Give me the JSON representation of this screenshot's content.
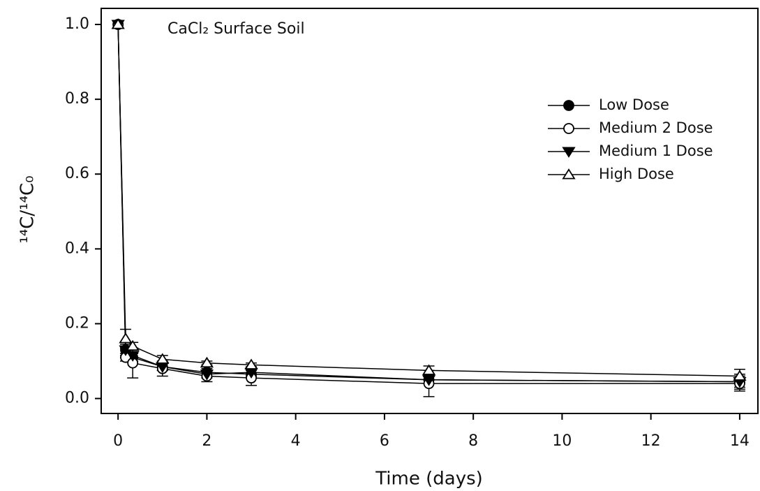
{
  "chart_data": {
    "type": "line",
    "title": "CaCl₂ Surface Soil",
    "x_label": "Time (days)",
    "y_label": "¹⁴C/¹⁴C₀",
    "x": [
      0,
      0.17,
      0.33,
      1,
      2,
      3,
      7,
      14
    ],
    "series": [
      {
        "name": "Low Dose",
        "color": "#000000",
        "marker": "circle-filled",
        "values": [
          1.0,
          0.13,
          0.11,
          0.085,
          0.07,
          0.065,
          0.05,
          0.045
        ],
        "errors": [
          0,
          0.015,
          0.01,
          0.01,
          0.01,
          0.01,
          0.01,
          0.02
        ]
      },
      {
        "name": "Medium 2 Dose",
        "color": "#000000",
        "marker": "circle-open",
        "values": [
          1.0,
          0.11,
          0.095,
          0.08,
          0.06,
          0.055,
          0.04,
          0.04
        ],
        "errors": [
          0,
          0.01,
          0.04,
          0.02,
          0.015,
          0.02,
          0.035,
          0.02
        ]
      },
      {
        "name": "Medium 1 Dose",
        "color": "#000000",
        "marker": "triangle-down-filled",
        "values": [
          1.0,
          0.13,
          0.115,
          0.085,
          0.065,
          0.07,
          0.05,
          0.045
        ],
        "errors": [
          0,
          0.02,
          0.01,
          0.01,
          0.01,
          0.01,
          0.01,
          0.015
        ]
      },
      {
        "name": "High Dose",
        "color": "#000000",
        "marker": "triangle-up-open",
        "values": [
          1.0,
          0.16,
          0.14,
          0.105,
          0.095,
          0.09,
          0.075,
          0.06
        ],
        "errors": [
          0,
          0.025,
          0.01,
          0.01,
          0.005,
          0.005,
          0.012,
          0.018
        ]
      }
    ],
    "xlim": [
      -0.38,
      14.41
    ],
    "ylim": [
      -0.04,
      1.043
    ],
    "xticks": [
      0,
      2,
      4,
      6,
      8,
      10,
      12,
      14
    ],
    "yticks": [
      {
        "value": 0,
        "label": "0.0"
      },
      0.2,
      0.4,
      0.6,
      0.8,
      {
        "value": 1,
        "label": "1.0"
      }
    ],
    "legend": "upper right"
  }
}
